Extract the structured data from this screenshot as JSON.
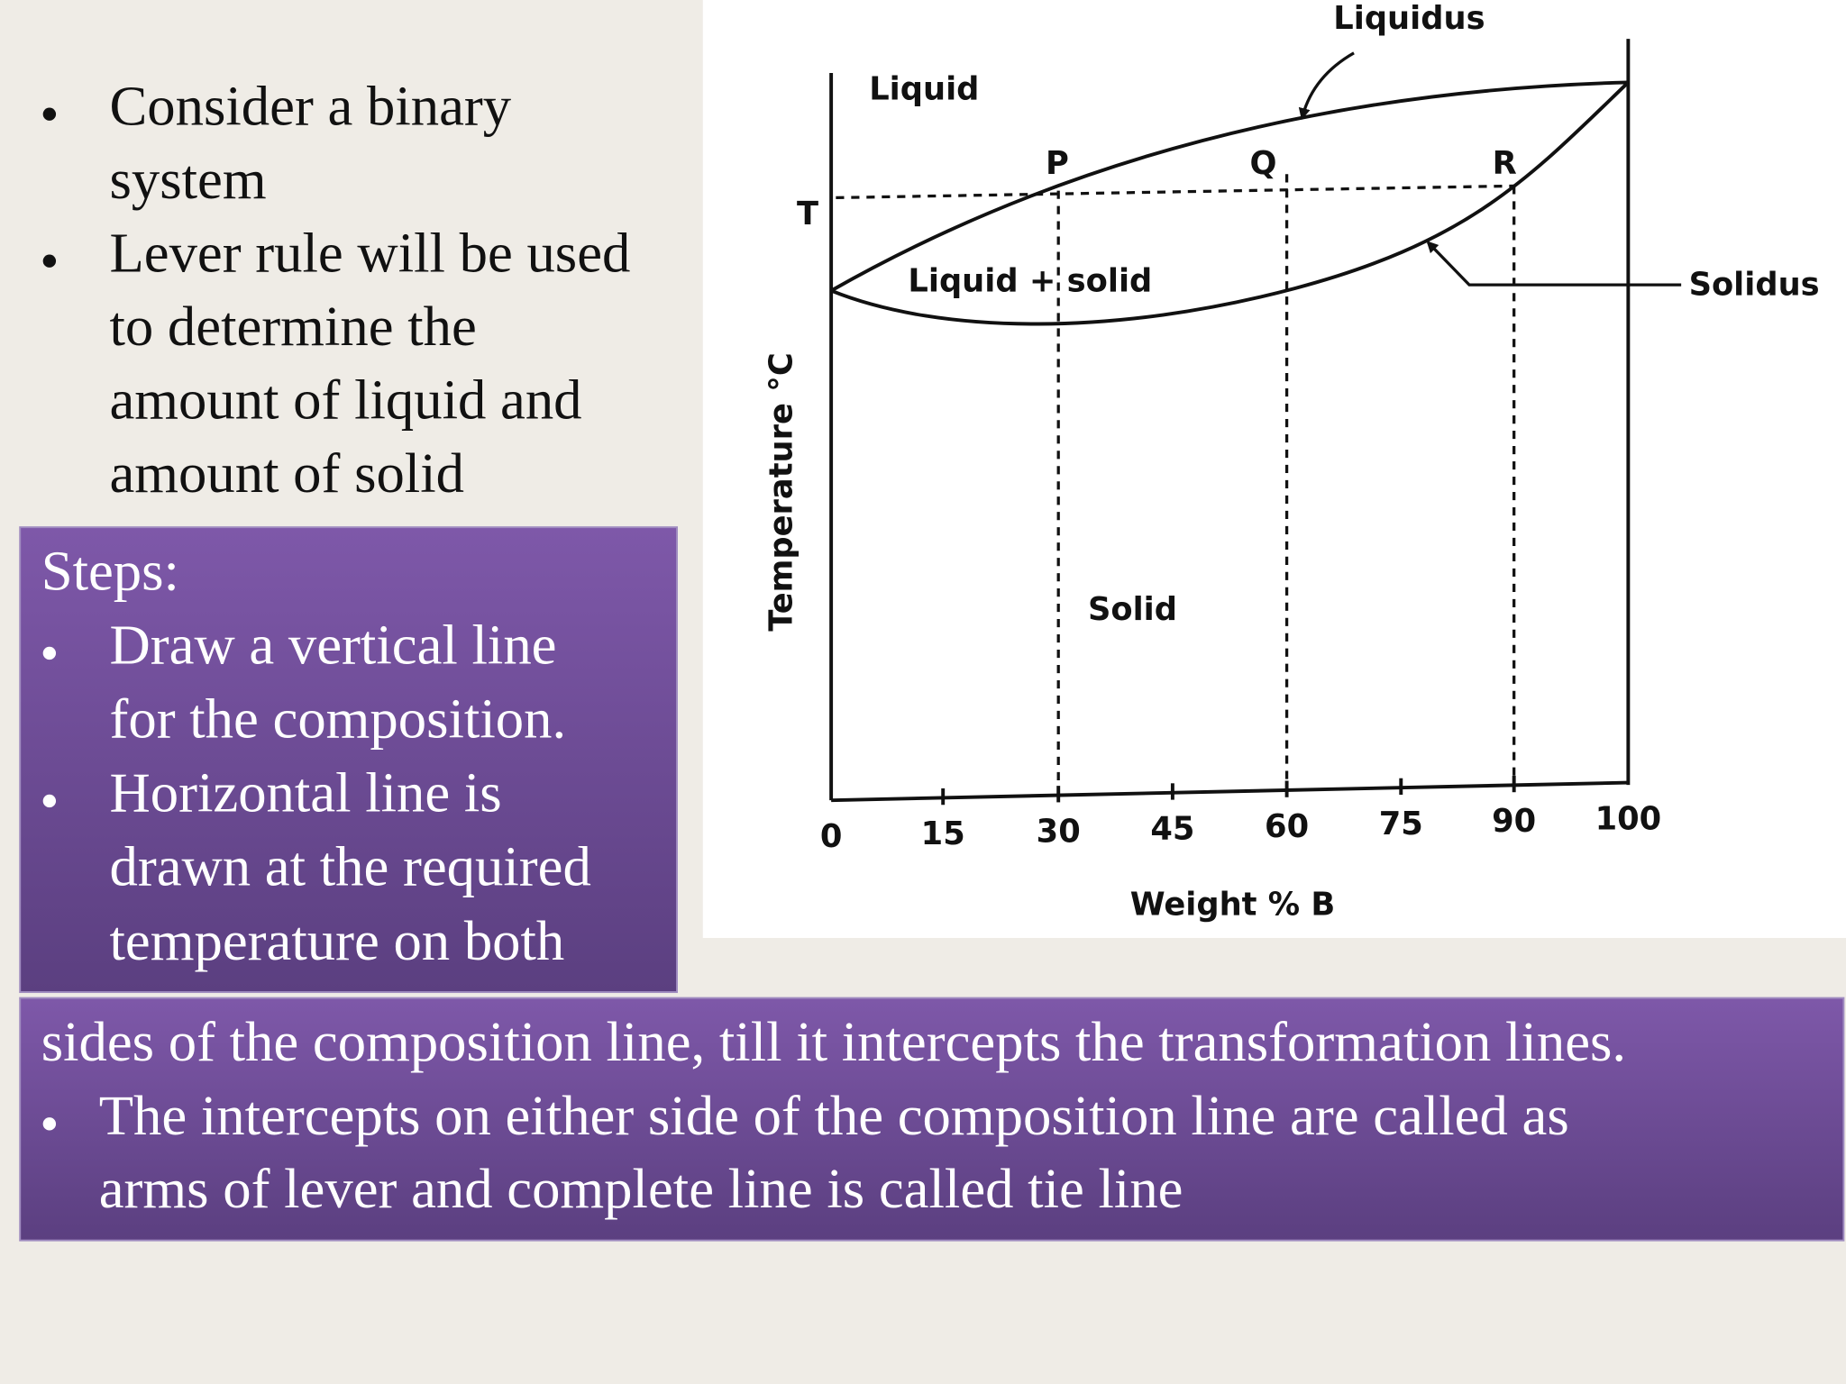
{
  "intro_bullets": [
    [
      "Consider a binary",
      "system"
    ],
    [
      "Lever rule will be used",
      "to determine the",
      "amount of liquid and",
      "amount of solid"
    ]
  ],
  "steps": {
    "heading": "Steps:",
    "bullets": [
      [
        "Draw a vertical line",
        "for the composition."
      ],
      [
        "Horizontal line is",
        "drawn at the required",
        "temperature on both"
      ]
    ]
  },
  "continuation": {
    "text": "sides of the composition line, till it intercepts the transformation lines.",
    "bullets": [
      [
        "The intercepts on either side of the composition line are called as",
        "arms of lever and complete line is called tie line"
      ]
    ]
  },
  "diagram": {
    "x_axis_title": "Weight % B",
    "y_axis_title": "Temperature °C",
    "temperature_label": "T",
    "x_tick_labels": [
      "0",
      "15",
      "30",
      "45",
      "60",
      "75",
      "90",
      "100"
    ],
    "points": [
      "P",
      "Q",
      "R"
    ],
    "regions": [
      "Liquid",
      "Liquid + solid",
      "Solid"
    ],
    "liquidus_label": "Liquidus",
    "solidus_label": "Solidus"
  }
}
